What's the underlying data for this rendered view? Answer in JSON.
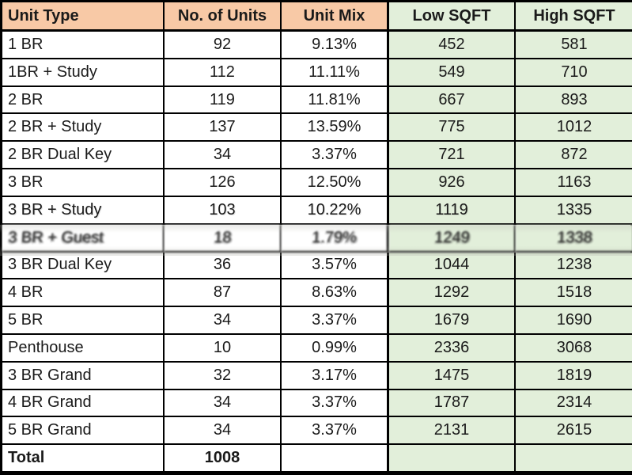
{
  "colors": {
    "header_peach": "#F8C9A6",
    "sqft_green": "#E2EFDA",
    "border": "#000000",
    "text": "#1A1A1A"
  },
  "table": {
    "headers": [
      "Unit Type",
      "No. of Units",
      "Unit Mix",
      "Low SQFT",
      "High SQFT"
    ],
    "rows": [
      {
        "cells": [
          "1 BR",
          "92",
          "9.13%",
          "452",
          "581"
        ]
      },
      {
        "cells": [
          "1BR + Study",
          "112",
          "11.11%",
          "549",
          "710"
        ]
      },
      {
        "cells": [
          "2 BR",
          "119",
          "11.81%",
          "667",
          "893"
        ]
      },
      {
        "cells": [
          "2 BR + Study",
          "137",
          "13.59%",
          "775",
          "1012"
        ]
      },
      {
        "cells": [
          "2 BR Dual Key",
          "34",
          "3.37%",
          "721",
          "872"
        ]
      },
      {
        "cells": [
          "3 BR",
          "126",
          "12.50%",
          "926",
          "1163"
        ]
      },
      {
        "cells": [
          "3 BR + Study",
          "103",
          "10.22%",
          "1119",
          "1335"
        ],
        "distortion": "light"
      },
      {
        "cells": [
          "3 BR + Guest",
          "18",
          "1.79%",
          "1249",
          "1338"
        ],
        "distortion": "heavy"
      },
      {
        "cells": [
          "3 BR Dual Key",
          "36",
          "3.57%",
          "1044",
          "1238"
        ]
      },
      {
        "cells": [
          "4 BR",
          "87",
          "8.63%",
          "1292",
          "1518"
        ]
      },
      {
        "cells": [
          "5 BR",
          "34",
          "3.37%",
          "1679",
          "1690"
        ]
      },
      {
        "cells": [
          "Penthouse",
          "10",
          "0.99%",
          "2336",
          "3068"
        ]
      },
      {
        "cells": [
          "3 BR Grand",
          "32",
          "3.17%",
          "1475",
          "1819"
        ]
      },
      {
        "cells": [
          "4 BR Grand",
          "34",
          "3.37%",
          "1787",
          "2314"
        ]
      },
      {
        "cells": [
          "5 BR Grand",
          "34",
          "3.37%",
          "2131",
          "2615"
        ]
      },
      {
        "cells": [
          "Total",
          "1008",
          "",
          "",
          ""
        ],
        "total": true
      }
    ]
  }
}
